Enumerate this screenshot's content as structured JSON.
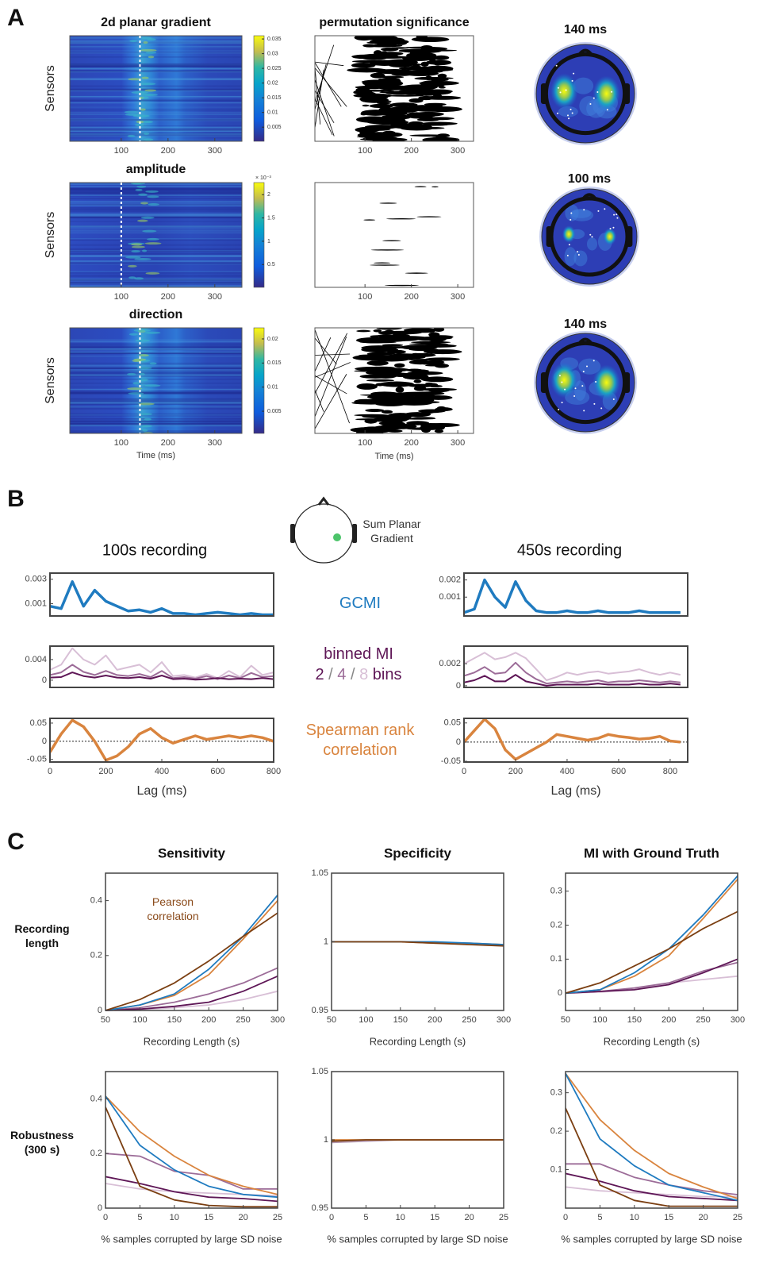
{
  "panel_labels": [
    "A",
    "B",
    "C"
  ],
  "chart_data": [
    {
      "type": "heatmap",
      "title": "2d planar gradient",
      "ylabel": "Sensors",
      "xlim": [
        -10,
        358
      ],
      "xticks": [
        100,
        200,
        300
      ],
      "marker": 140,
      "clim": [
        0.0002,
        0.0361
      ],
      "cbar_ticks": [
        0.005,
        0.01,
        0.015,
        0.02,
        0.025,
        0.03,
        0.035
      ]
    },
    {
      "type": "heatmap",
      "title": "amplitude",
      "ylabel": "Sensors",
      "xlim": [
        -10,
        358
      ],
      "xticks": [
        100,
        200,
        300
      ],
      "marker": 100,
      "clim": [
        1e-05,
        0.00226
      ],
      "cbar_multiplier": "× 10⁻³",
      "cbar_ticks": [
        {
          "value": 0.0005,
          "label": "0.5"
        },
        {
          "value": 0.001,
          "label": "1"
        },
        {
          "value": 0.0015,
          "label": "1.5"
        },
        {
          "value": 0.002,
          "label": "2"
        }
      ]
    },
    {
      "type": "heatmap",
      "title": "direction",
      "ylabel": "Sensors",
      "xlabel": "Time (ms)",
      "xlim": [
        -10,
        358
      ],
      "xticks": [
        100,
        200,
        300
      ],
      "marker": 140,
      "clim": [
        0.0004,
        0.0223
      ],
      "cbar_ticks": [
        0.005,
        0.01,
        0.015,
        0.02
      ]
    },
    {
      "type": "significance",
      "title": "permutation significance",
      "xlim": [
        -8,
        334
      ],
      "xticks": [
        100,
        200,
        300
      ]
    },
    {
      "type": "significance",
      "xlim": [
        -8,
        334
      ],
      "xticks": [
        100,
        200,
        300
      ]
    },
    {
      "type": "significance",
      "xlabel": "Time (ms)",
      "xlim": [
        -8,
        334
      ],
      "xticks": [
        100,
        200,
        300
      ]
    },
    {
      "type": "topomap",
      "title": "140 ms"
    },
    {
      "type": "topomap",
      "title": "100 ms"
    },
    {
      "type": "topomap",
      "title": "140 ms"
    },
    {
      "type": "sensor_map",
      "label": "Sum Planar Gradient"
    },
    {
      "type": "line",
      "title": "100s recording",
      "xlim": [
        0,
        800
      ],
      "ylim": [
        0,
        0.0035
      ],
      "yticks": [
        0.001,
        0.003
      ],
      "x": [
        0,
        40,
        80,
        120,
        160,
        200,
        240,
        280,
        320,
        360,
        400,
        440,
        480,
        520,
        560,
        600,
        640,
        680,
        720,
        760,
        800
      ],
      "series": [
        {
          "name": "GCMI",
          "color": "#1f7bc0",
          "values": [
            0.0008,
            0.0006,
            0.0028,
            0.0008,
            0.0021,
            0.0012,
            0.0008,
            0.0004,
            0.0005,
            0.0003,
            0.0006,
            0.0002,
            0.0002,
            0.0001,
            0.0002,
            0.0003,
            0.0002,
            0.0001,
            0.0002,
            0.0001,
            0.0001
          ]
        }
      ]
    },
    {
      "type": "line",
      "label": "binned MI",
      "legend_separator": "/",
      "legend_suffix": "bins",
      "xlim": [
        0,
        800
      ],
      "ylim": [
        -0.0014,
        0.0066
      ],
      "yticks": [
        0,
        0.004
      ],
      "x": [
        0,
        40,
        80,
        120,
        160,
        200,
        240,
        280,
        320,
        360,
        400,
        440,
        480,
        520,
        560,
        600,
        640,
        680,
        720,
        760,
        800
      ],
      "series": [
        {
          "name": "2",
          "color": "#5e1656",
          "values": [
            0.0005,
            0.0006,
            0.0015,
            0.0008,
            0.0005,
            0.0009,
            0.0005,
            0.0004,
            0.0006,
            0.0003,
            0.0009,
            0.0002,
            0.0003,
            0.0001,
            0.0002,
            0.0004,
            0.0002,
            0.0003,
            0.0002,
            0.0004,
            0.0002
          ]
        },
        {
          "name": "4",
          "color": "#9c6c98",
          "values": [
            0.001,
            0.0015,
            0.003,
            0.0016,
            0.001,
            0.0018,
            0.001,
            0.0008,
            0.0012,
            0.0006,
            0.0018,
            0.0004,
            0.0006,
            0.0003,
            0.0008,
            0.0002,
            0.0009,
            0.0004,
            0.0014,
            0.0006,
            0.0008
          ]
        },
        {
          "name": "8",
          "color": "#d8bfd6",
          "values": [
            0.002,
            0.003,
            0.0062,
            0.004,
            0.003,
            0.0048,
            0.002,
            0.0025,
            0.003,
            0.0015,
            0.0035,
            0.0008,
            0.001,
            0.0005,
            0.0012,
            0.0004,
            0.0018,
            0.0006,
            0.0028,
            0.001,
            0.0015
          ]
        }
      ]
    },
    {
      "type": "line",
      "xlabel": "Lag (ms)",
      "xlim": [
        0,
        800
      ],
      "xticks": [
        0,
        200,
        400,
        600,
        800
      ],
      "ylim": [
        -0.057,
        0.063
      ],
      "yticks": [
        -0.05,
        0,
        0.05
      ],
      "zero_line": true,
      "x": [
        0,
        40,
        80,
        120,
        160,
        200,
        240,
        280,
        320,
        360,
        400,
        440,
        480,
        520,
        560,
        600,
        640,
        680,
        720,
        760,
        800
      ],
      "series": [
        {
          "name": "Spearman rank correlation",
          "color": "#d9843e",
          "values": [
            -0.03,
            0.02,
            0.058,
            0.04,
            0.0,
            -0.052,
            -0.04,
            -0.015,
            0.02,
            0.035,
            0.01,
            -0.005,
            0.005,
            0.015,
            0.005,
            0.01,
            0.015,
            0.01,
            0.015,
            0.01,
            0.0
          ]
        }
      ]
    },
    {
      "type": "line",
      "title": "450s recording",
      "xlim": [
        0,
        868
      ],
      "ylim": [
        -0.0001,
        0.0024
      ],
      "yticks": [
        0.001,
        0.002
      ],
      "x": [
        0,
        40,
        80,
        120,
        160,
        200,
        240,
        280,
        320,
        360,
        400,
        440,
        480,
        520,
        560,
        600,
        640,
        680,
        720,
        760,
        800,
        840
      ],
      "series": [
        {
          "color": "#1f7bc0",
          "values": [
            0.0001,
            0.0003,
            0.002,
            0.001,
            0.0004,
            0.0019,
            0.0008,
            0.0002,
            0.0001,
            0.0001,
            0.0002,
            0.0001,
            0.0001,
            0.0002,
            0.0001,
            0.0001,
            0.0001,
            0.0002,
            0.0001,
            0.0001,
            0.0001,
            0.0001
          ]
        }
      ]
    },
    {
      "type": "line",
      "xlim": [
        0,
        868
      ],
      "ylim": [
        -0.00015,
        0.0036
      ],
      "yticks": [
        0,
        0.002
      ],
      "x": [
        0,
        40,
        80,
        120,
        160,
        200,
        240,
        280,
        320,
        360,
        400,
        440,
        480,
        520,
        560,
        600,
        640,
        680,
        720,
        760,
        800,
        840
      ],
      "series": [
        {
          "color": "#5e1656",
          "values": [
            0.0003,
            0.0005,
            0.0009,
            0.0004,
            0.0004,
            0.001,
            0.0004,
            0.0002,
            0.0,
            0.0001,
            0.0001,
            0.0001,
            0.0001,
            0.0002,
            0.0001,
            0.0001,
            0.0001,
            0.0002,
            0.0001,
            0.0001,
            0.0002,
            0.0001
          ]
        },
        {
          "color": "#9c6c98",
          "values": [
            0.0009,
            0.0012,
            0.0017,
            0.0011,
            0.0012,
            0.0021,
            0.0012,
            0.0006,
            0.0002,
            0.0003,
            0.0004,
            0.0003,
            0.0004,
            0.0005,
            0.0003,
            0.0004,
            0.0004,
            0.0005,
            0.0004,
            0.0003,
            0.0004,
            0.0003
          ]
        },
        {
          "color": "#d8bfd6",
          "values": [
            0.002,
            0.0025,
            0.003,
            0.0024,
            0.0026,
            0.003,
            0.0025,
            0.0015,
            0.0005,
            0.0008,
            0.0012,
            0.001,
            0.0012,
            0.0013,
            0.0011,
            0.0012,
            0.0013,
            0.0015,
            0.0012,
            0.001,
            0.0012,
            0.001
          ]
        }
      ]
    },
    {
      "type": "line",
      "xlabel": "Lag (ms)",
      "xlim": [
        0,
        868
      ],
      "xticks": [
        0,
        200,
        400,
        600,
        800
      ],
      "ylim": [
        -0.052,
        0.062
      ],
      "yticks": [
        -0.05,
        0,
        0.05
      ],
      "zero_line": true,
      "x": [
        0,
        40,
        80,
        120,
        160,
        200,
        240,
        280,
        320,
        360,
        400,
        440,
        480,
        520,
        560,
        600,
        640,
        680,
        720,
        760,
        800,
        840
      ],
      "series": [
        {
          "color": "#d9843e",
          "values": [
            0.0,
            0.03,
            0.06,
            0.035,
            -0.02,
            -0.045,
            -0.03,
            -0.015,
            0.0,
            0.02,
            0.015,
            0.01,
            0.005,
            0.01,
            0.02,
            0.015,
            0.012,
            0.008,
            0.01,
            0.015,
            0.003,
            0.0
          ]
        }
      ]
    },
    {
      "type": "line",
      "title": "Sensitivity",
      "row_label": "Recording length",
      "annotation": "Pearson correlation",
      "annotation_color": "#8a4a1a",
      "xlabel": "Recording Length (s)",
      "xlim": [
        50,
        300
      ],
      "xticks": [
        50,
        100,
        150,
        200,
        250,
        300
      ],
      "ylim": [
        0,
        0.5
      ],
      "yticks": [
        0,
        0.2,
        0.4
      ],
      "x": [
        50,
        100,
        150,
        200,
        250,
        300
      ],
      "series": [
        {
          "color": "#d8bfd6",
          "values": [
            0,
            0.003,
            0.01,
            0.02,
            0.04,
            0.07
          ]
        },
        {
          "color": "#9c6c98",
          "values": [
            0,
            0.01,
            0.03,
            0.06,
            0.1,
            0.155
          ]
        },
        {
          "color": "#5e1656",
          "values": [
            0,
            0.005,
            0.015,
            0.03,
            0.07,
            0.125
          ]
        },
        {
          "color": "#d9843e",
          "values": [
            0,
            0.02,
            0.055,
            0.13,
            0.26,
            0.4
          ]
        },
        {
          "color": "#1f7bc0",
          "values": [
            0,
            0.02,
            0.06,
            0.15,
            0.27,
            0.42
          ]
        },
        {
          "color": "#7b3f12",
          "values": [
            0,
            0.04,
            0.1,
            0.18,
            0.27,
            0.355
          ]
        }
      ]
    },
    {
      "type": "line",
      "title": "Specificity",
      "xlabel": "Recording Length (s)",
      "xlim": [
        50,
        300
      ],
      "xticks": [
        50,
        100,
        150,
        200,
        250,
        300
      ],
      "ylim": [
        0.95,
        1.05
      ],
      "yticks": [
        0.95,
        1,
        1.05
      ],
      "x": [
        50,
        100,
        150,
        200,
        250,
        300
      ],
      "series": [
        {
          "color": "#d9843e",
          "values": [
            1,
            1,
            1,
            0.999,
            0.999,
            0.998
          ]
        },
        {
          "color": "#1f7bc0",
          "values": [
            1,
            1,
            1,
            1,
            0.999,
            0.998
          ]
        },
        {
          "color": "#7b3f12",
          "values": [
            1,
            1,
            1,
            0.999,
            0.998,
            0.997
          ]
        }
      ]
    },
    {
      "type": "line",
      "title": "MI with Ground Truth",
      "xlabel": "Recording Length (s)",
      "xlim": [
        50,
        300
      ],
      "xticks": [
        50,
        100,
        150,
        200,
        250,
        300
      ],
      "ylim": [
        -0.051,
        0.353
      ],
      "yticks": [
        0,
        0.1,
        0.2,
        0.3
      ],
      "x": [
        50,
        100,
        150,
        200,
        250,
        300
      ],
      "series": [
        {
          "color": "#d8bfd6",
          "values": [
            0,
            0.003,
            0.01,
            0.03,
            0.04,
            0.05
          ]
        },
        {
          "color": "#9c6c98",
          "values": [
            0,
            0.005,
            0.015,
            0.03,
            0.065,
            0.09
          ]
        },
        {
          "color": "#5e1656",
          "values": [
            0,
            0.005,
            0.01,
            0.025,
            0.06,
            0.1
          ]
        },
        {
          "color": "#d9843e",
          "values": [
            0,
            0.01,
            0.05,
            0.11,
            0.22,
            0.335
          ]
        },
        {
          "color": "#1f7bc0",
          "values": [
            0,
            0.01,
            0.06,
            0.13,
            0.23,
            0.345
          ]
        },
        {
          "color": "#7b3f12",
          "values": [
            0,
            0.03,
            0.08,
            0.13,
            0.19,
            0.24
          ]
        }
      ]
    },
    {
      "type": "line",
      "row_label": "Robustness (300 s)",
      "xlabel": "% samples corrupted by large SD noise",
      "xlim": [
        0,
        25
      ],
      "xticks": [
        0,
        5,
        10,
        15,
        20,
        25
      ],
      "ylim": [
        0,
        0.5
      ],
      "yticks": [
        0,
        0.2,
        0.4
      ],
      "x": [
        0,
        5,
        10,
        15,
        20,
        25
      ],
      "series": [
        {
          "color": "#d8bfd6",
          "values": [
            0.09,
            0.07,
            0.06,
            0.055,
            0.05,
            0.045
          ]
        },
        {
          "color": "#9c6c98",
          "values": [
            0.2,
            0.19,
            0.135,
            0.12,
            0.07,
            0.07
          ]
        },
        {
          "color": "#5e1656",
          "values": [
            0.115,
            0.09,
            0.06,
            0.04,
            0.035,
            0.025
          ]
        },
        {
          "color": "#d9843e",
          "values": [
            0.41,
            0.28,
            0.19,
            0.12,
            0.08,
            0.05
          ]
        },
        {
          "color": "#1f7bc0",
          "values": [
            0.41,
            0.23,
            0.14,
            0.08,
            0.05,
            0.04
          ]
        },
        {
          "color": "#7b3f12",
          "values": [
            0.37,
            0.08,
            0.03,
            0.01,
            0.005,
            0.005
          ]
        }
      ]
    },
    {
      "type": "line",
      "xlabel": "% samples corrupted by large SD noise",
      "xlim": [
        0,
        25
      ],
      "xticks": [
        0,
        5,
        10,
        15,
        20,
        25
      ],
      "ylim": [
        0.95,
        1.05
      ],
      "yticks": [
        0.95,
        1,
        1.05
      ],
      "x": [
        0,
        5,
        10,
        15,
        20,
        25
      ],
      "series": [
        {
          "color": "#b59ab3",
          "values": [
            0.998,
            0.999,
            1,
            1,
            1,
            1
          ]
        },
        {
          "color": "#d9843e",
          "values": [
            1,
            1,
            1,
            1,
            1,
            1
          ]
        },
        {
          "color": "#7b3f12",
          "values": [
            0.999,
            1,
            1,
            1,
            1,
            1
          ]
        }
      ]
    },
    {
      "type": "line",
      "xlabel": "% samples corrupted by large SD noise",
      "xlim": [
        0,
        25
      ],
      "xticks": [
        0,
        5,
        10,
        15,
        20,
        25
      ],
      "ylim": [
        0,
        0.355
      ],
      "yticks": [
        0.1,
        0.2,
        0.3
      ],
      "x": [
        0,
        5,
        10,
        15,
        20,
        25
      ],
      "series": [
        {
          "color": "#d8bfd6",
          "values": [
            0.055,
            0.045,
            0.04,
            0.035,
            0.03,
            0.03
          ]
        },
        {
          "color": "#9c6c98",
          "values": [
            0.115,
            0.115,
            0.08,
            0.06,
            0.045,
            0.035
          ]
        },
        {
          "color": "#5e1656",
          "values": [
            0.09,
            0.07,
            0.045,
            0.03,
            0.025,
            0.02
          ]
        },
        {
          "color": "#d9843e",
          "values": [
            0.35,
            0.23,
            0.15,
            0.09,
            0.055,
            0.025
          ]
        },
        {
          "color": "#1f7bc0",
          "values": [
            0.35,
            0.18,
            0.11,
            0.06,
            0.04,
            0.02
          ]
        },
        {
          "color": "#7b3f12",
          "values": [
            0.26,
            0.06,
            0.02,
            0.005,
            0.005,
            0.005
          ]
        }
      ]
    }
  ]
}
